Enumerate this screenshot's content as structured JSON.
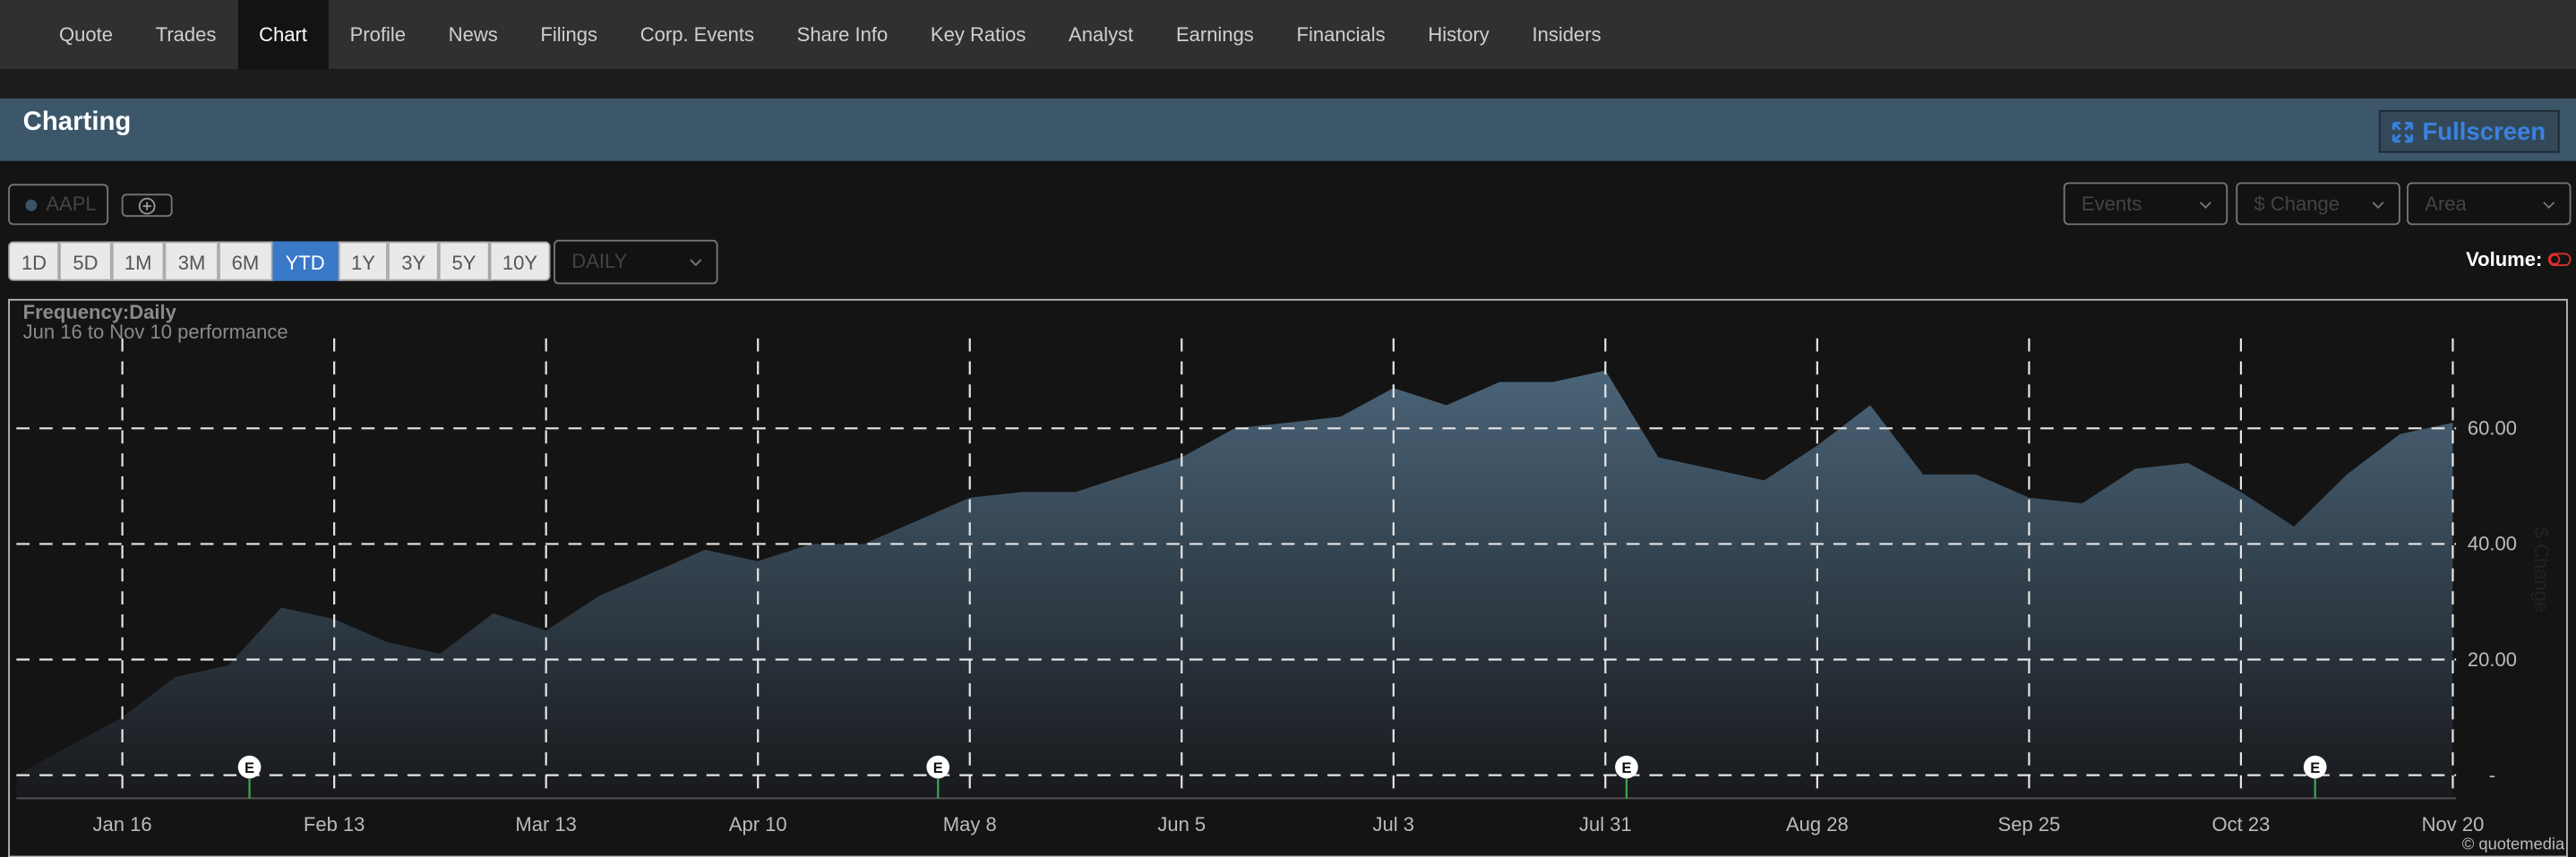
{
  "nav": {
    "items": [
      "Quote",
      "Trades",
      "Chart",
      "Profile",
      "News",
      "Filings",
      "Corp. Events",
      "Share Info",
      "Key Ratios",
      "Analyst",
      "Earnings",
      "Financials",
      "History",
      "Insiders"
    ],
    "active": "Chart"
  },
  "header": {
    "title": "Charting",
    "fullscreen": "Fullscreen"
  },
  "toolbar": {
    "symbol": "AAPL",
    "dropdowns": [
      "Events",
      "$ Change",
      "Area"
    ],
    "periods": [
      "1D",
      "5D",
      "1M",
      "3M",
      "6M",
      "YTD",
      "1Y",
      "3Y",
      "5Y",
      "10Y"
    ],
    "active_period": "YTD",
    "frequency_select": "DAILY",
    "volume": "Volume:"
  },
  "chart_data": {
    "type": "area",
    "title": "Frequency:Daily",
    "subtitle": "Jun 16 to Nov 10 performance",
    "y_label": "$ Change",
    "categories": [
      null,
      null,
      "Jan 16",
      null,
      null,
      null,
      "Feb 13",
      null,
      null,
      null,
      "Mar 13",
      null,
      null,
      null,
      "Apr 10",
      null,
      null,
      null,
      "May 8",
      null,
      null,
      null,
      "Jun 5",
      null,
      null,
      null,
      "Jul 3",
      null,
      null,
      null,
      "Jul 31",
      null,
      null,
      null,
      "Aug 28",
      null,
      null,
      null,
      "Sep 25",
      null,
      null,
      null,
      "Oct 23",
      null,
      null,
      null,
      "Nov 20"
    ],
    "values": [
      0,
      5,
      10,
      17,
      19,
      29,
      27,
      23,
      21,
      28,
      25,
      31,
      35,
      39,
      37,
      40,
      40,
      44,
      48,
      49,
      49,
      52,
      55,
      60,
      61,
      62,
      67,
      64,
      68,
      68,
      70,
      55,
      53,
      51,
      57,
      64,
      52,
      52,
      48,
      47,
      53,
      54,
      49,
      43,
      52,
      59,
      61
    ],
    "color": "#4a6478",
    "ylim": [
      -4,
      75
    ],
    "yticks": [
      {
        "value": 0,
        "label": "-"
      },
      {
        "value": 20,
        "label": "20.00"
      },
      {
        "value": 40,
        "label": "40.00"
      },
      {
        "value": 60,
        "label": "60.00"
      }
    ],
    "grid": true,
    "annotations": [
      "E",
      "E",
      "E",
      "E"
    ],
    "credit": "© quotemedia"
  }
}
